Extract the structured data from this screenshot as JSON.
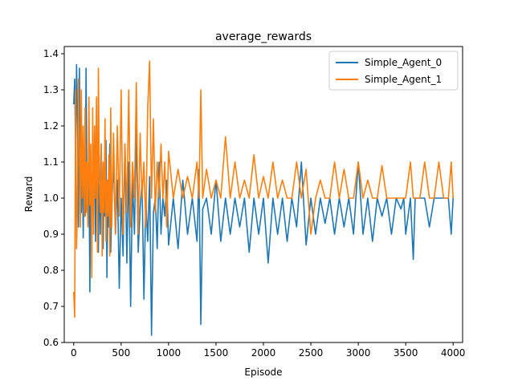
{
  "chart_data": {
    "type": "line",
    "title": "average_rewards",
    "xlabel": "Episode",
    "ylabel": "Reward",
    "xlim": [
      -100,
      4100
    ],
    "ylim": [
      0.6,
      1.42
    ],
    "xticks": [
      0,
      500,
      1000,
      1500,
      2000,
      2500,
      3000,
      3500,
      4000
    ],
    "yticks": [
      0.6,
      0.7,
      0.8,
      0.9,
      1.0,
      1.1,
      1.2,
      1.3,
      1.4
    ],
    "xtick_labels": [
      "0",
      "500",
      "1000",
      "1500",
      "2000",
      "2500",
      "3000",
      "3500",
      "4000"
    ],
    "ytick_labels": [
      "0.6",
      "0.7",
      "0.8",
      "0.9",
      "1.0",
      "1.1",
      "1.2",
      "1.3",
      "1.4"
    ],
    "grid": false,
    "legend_position": "top-right",
    "series": [
      {
        "name": "Simple_Agent_0",
        "color": "#1f77b4",
        "x": [
          0,
          10,
          20,
          30,
          40,
          50,
          60,
          70,
          80,
          90,
          100,
          110,
          120,
          130,
          140,
          150,
          160,
          170,
          180,
          190,
          200,
          210,
          220,
          230,
          240,
          250,
          260,
          270,
          280,
          290,
          300,
          310,
          320,
          330,
          340,
          350,
          360,
          370,
          380,
          390,
          400,
          420,
          440,
          460,
          480,
          500,
          520,
          540,
          560,
          580,
          600,
          620,
          640,
          660,
          680,
          700,
          720,
          740,
          760,
          780,
          800,
          820,
          840,
          860,
          880,
          900,
          920,
          940,
          960,
          980,
          1000,
          1050,
          1100,
          1150,
          1200,
          1250,
          1300,
          1320,
          1340,
          1360,
          1400,
          1450,
          1500,
          1550,
          1600,
          1650,
          1700,
          1750,
          1800,
          1850,
          1900,
          1950,
          2000,
          2050,
          2100,
          2150,
          2200,
          2250,
          2300,
          2350,
          2400,
          2450,
          2500,
          2550,
          2600,
          2650,
          2700,
          2750,
          2800,
          2850,
          2900,
          2950,
          3000,
          3050,
          3100,
          3150,
          3200,
          3250,
          3300,
          3350,
          3400,
          3450,
          3480,
          3500,
          3550,
          3580,
          3600,
          3650,
          3700,
          3750,
          3800,
          3850,
          3900,
          3950,
          3980,
          4000
        ],
        "values": [
          1.26,
          1.33,
          1.13,
          1.37,
          1.2,
          0.92,
          1.36,
          1.08,
          0.96,
          1.15,
          0.89,
          1.1,
          0.95,
          1.36,
          1.0,
          0.93,
          1.12,
          0.74,
          1.08,
          0.9,
          1.1,
          0.95,
          1.2,
          0.88,
          1.12,
          1.0,
          0.85,
          1.12,
          0.9,
          1.15,
          0.97,
          0.86,
          1.05,
          0.95,
          1.16,
          0.78,
          1.05,
          0.92,
          1.15,
          0.85,
          0.98,
          1.1,
          0.9,
          1.05,
          0.75,
          1.0,
          0.84,
          1.15,
          0.82,
          1.1,
          0.7,
          1.05,
          0.9,
          1.2,
          0.85,
          0.97,
          1.05,
          0.72,
          1.0,
          0.88,
          1.06,
          0.62,
          0.96,
          1.0,
          0.86,
          1.1,
          0.9,
          1.0,
          0.95,
          1.05,
          0.87,
          1.0,
          0.86,
          1.05,
          0.9,
          1.0,
          0.88,
          1.08,
          0.65,
          0.97,
          1.0,
          0.9,
          1.05,
          0.88,
          1.0,
          0.9,
          1.0,
          0.92,
          1.0,
          0.85,
          1.0,
          0.9,
          1.0,
          0.82,
          1.0,
          0.9,
          1.0,
          0.88,
          1.0,
          0.92,
          1.1,
          0.87,
          1.0,
          0.9,
          1.0,
          0.93,
          1.0,
          0.9,
          1.0,
          0.92,
          1.0,
          0.9,
          1.1,
          0.9,
          1.0,
          0.88,
          1.0,
          0.95,
          1.0,
          0.9,
          1.0,
          0.97,
          1.0,
          0.9,
          1.0,
          0.83,
          1.0,
          1.0,
          1.0,
          0.92,
          1.0,
          1.0,
          1.0,
          1.0,
          0.9,
          1.0
        ]
      },
      {
        "name": "Simple_Agent_1",
        "color": "#ff7f0e",
        "x": [
          0,
          10,
          20,
          30,
          40,
          50,
          60,
          70,
          80,
          90,
          100,
          110,
          120,
          130,
          140,
          150,
          160,
          170,
          180,
          190,
          200,
          210,
          220,
          230,
          240,
          250,
          260,
          270,
          280,
          290,
          300,
          310,
          320,
          330,
          340,
          350,
          360,
          370,
          380,
          390,
          400,
          420,
          440,
          460,
          480,
          500,
          520,
          540,
          560,
          580,
          600,
          620,
          640,
          660,
          680,
          700,
          720,
          740,
          760,
          780,
          800,
          820,
          840,
          860,
          880,
          900,
          920,
          940,
          960,
          980,
          1000,
          1050,
          1100,
          1150,
          1200,
          1250,
          1300,
          1320,
          1340,
          1360,
          1400,
          1450,
          1500,
          1550,
          1600,
          1650,
          1700,
          1750,
          1800,
          1850,
          1900,
          1950,
          2000,
          2050,
          2100,
          2150,
          2200,
          2250,
          2300,
          2350,
          2400,
          2450,
          2500,
          2550,
          2600,
          2650,
          2700,
          2750,
          2800,
          2850,
          2900,
          2950,
          3000,
          3050,
          3100,
          3150,
          3200,
          3250,
          3300,
          3350,
          3400,
          3450,
          3480,
          3500,
          3550,
          3580,
          3600,
          3650,
          3700,
          3750,
          3800,
          3850,
          3900,
          3950,
          3980,
          4000
        ],
        "values": [
          0.74,
          0.67,
          1.3,
          0.86,
          1.0,
          1.33,
          1.15,
          0.92,
          1.3,
          1.0,
          1.2,
          0.95,
          1.25,
          0.96,
          1.1,
          0.92,
          1.28,
          0.98,
          1.15,
          0.78,
          1.25,
          0.9,
          1.2,
          1.0,
          1.28,
          0.85,
          1.36,
          1.05,
          0.96,
          1.15,
          0.84,
          1.1,
          0.96,
          1.22,
          0.88,
          1.05,
          0.95,
          1.12,
          0.84,
          1.25,
          0.92,
          1.18,
          0.9,
          1.2,
          0.95,
          1.3,
          0.9,
          1.15,
          0.96,
          1.3,
          0.92,
          1.1,
          1.0,
          1.32,
          0.9,
          1.18,
          1.0,
          1.1,
          0.92,
          1.25,
          1.38,
          1.0,
          1.22,
          0.96,
          1.1,
          1.0,
          1.15,
          1.0,
          1.1,
          0.92,
          1.13,
          1.0,
          1.08,
          1.0,
          1.06,
          1.0,
          1.1,
          1.0,
          1.3,
          1.0,
          1.08,
          1.0,
          1.05,
          1.0,
          1.17,
          1.0,
          1.1,
          1.0,
          1.05,
          1.0,
          1.12,
          1.0,
          1.06,
          1.0,
          1.1,
          1.0,
          1.05,
          1.0,
          1.0,
          1.1,
          1.0,
          1.08,
          0.9,
          1.0,
          1.05,
          1.0,
          1.0,
          1.1,
          1.0,
          1.08,
          1.0,
          1.0,
          1.1,
          1.0,
          1.05,
          1.0,
          1.0,
          1.09,
          1.0,
          1.0,
          1.0,
          1.0,
          1.0,
          1.0,
          1.1,
          1.0,
          1.0,
          1.0,
          1.1,
          1.0,
          1.0,
          1.1,
          1.0,
          1.0,
          1.1,
          1.0
        ]
      }
    ]
  }
}
